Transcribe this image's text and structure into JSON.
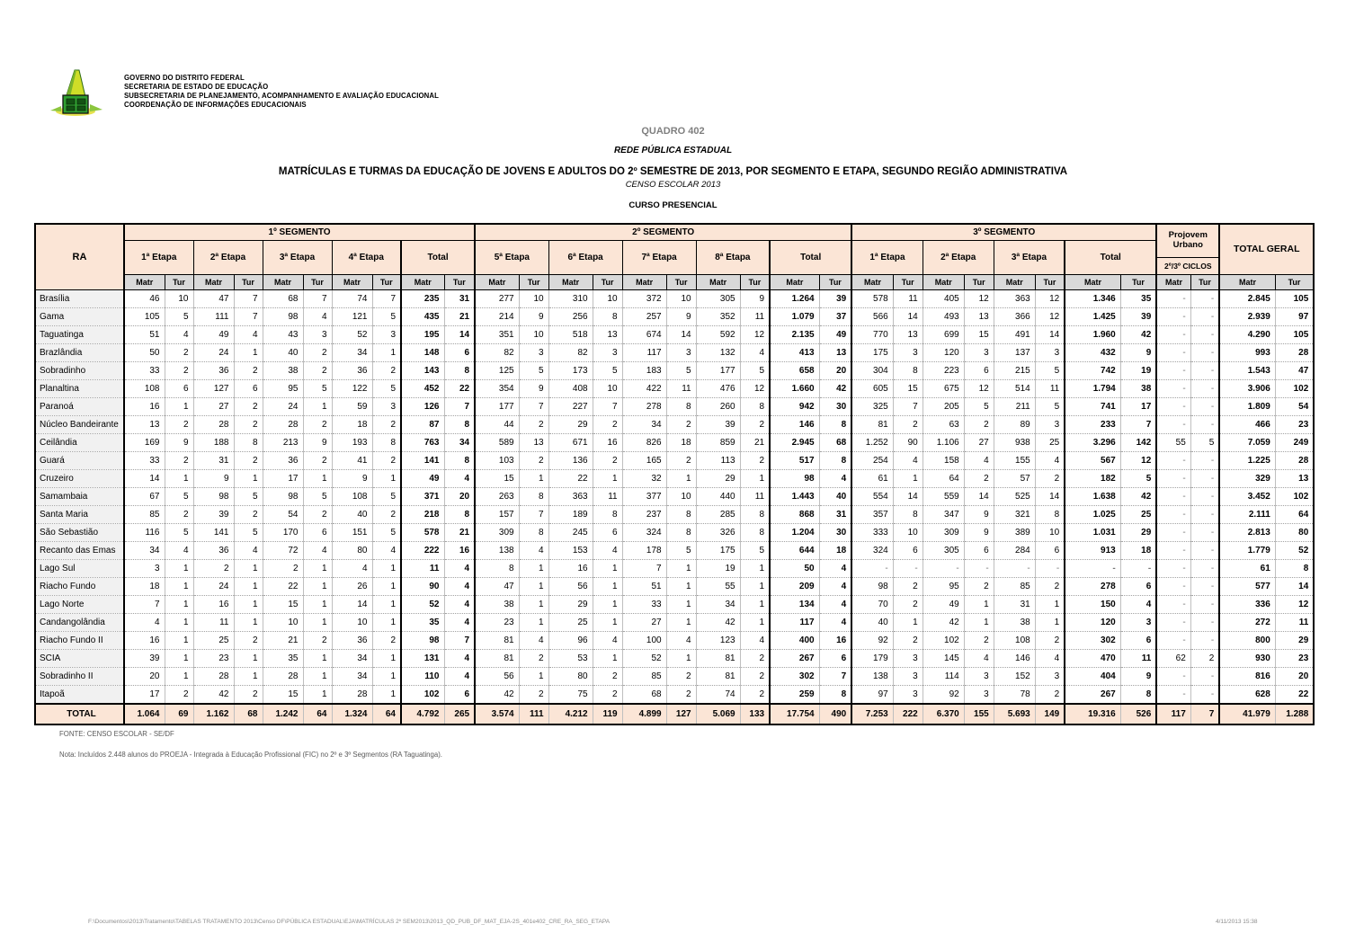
{
  "letterhead": {
    "org_lines": [
      "GOVERNO DO DISTRITO FEDERAL",
      "SECRETARIA DE ESTADO DE EDUCAÇÃO",
      "SUBSECRETARIA DE PLANEJAMENTO, ACOMPANHAMENTO E AVALIAÇÃO EDUCACIONAL",
      "COORDENAÇÃO DE INFORMAÇÕES EDUCACIONAIS"
    ]
  },
  "titles": {
    "quadro": "QUADRO 402",
    "rede": "REDE PÚBLICA ESTADUAL",
    "main": "MATRÍCULAS E TURMAS DA EDUCAÇÃO DE JOVENS E ADULTOS DO 2º SEMESTRE DE 2013, POR SEGMENTO E ETAPA, SEGUNDO REGIÃO ADMINISTRATIVA",
    "censo": "CENSO ESCOLAR 2013",
    "curso": "CURSO PRESENCIAL"
  },
  "table": {
    "ra_header": "RA",
    "matr_label": "Matr",
    "tur_label": "Tur",
    "segments": [
      {
        "label": "1º SEGMENTO",
        "etapas": [
          "1ª Etapa",
          "2ª Etapa",
          "3ª Etapa",
          "4ª Etapa",
          "Total"
        ]
      },
      {
        "label": "2º SEGMENTO",
        "etapas": [
          "5ª Etapa",
          "6ª Etapa",
          "7ª Etapa",
          "8ª Etapa",
          "Total"
        ]
      },
      {
        "label": "3º SEGMENTO",
        "etapas": [
          "1ª Etapa",
          "2ª Etapa",
          "3ª Etapa",
          "Total"
        ]
      }
    ],
    "projovem": {
      "label": "Projovem Urbano",
      "sub": "2º/3º CICLOS"
    },
    "total_geral_label": "TOTAL GERAL",
    "rows": [
      {
        "ra": "Brasília",
        "cells": [
          "46",
          "10",
          "47",
          "7",
          "68",
          "7",
          "74",
          "7",
          "235",
          "31",
          "277",
          "10",
          "310",
          "10",
          "372",
          "10",
          "305",
          "9",
          "1.264",
          "39",
          "578",
          "11",
          "405",
          "12",
          "363",
          "12",
          "1.346",
          "35",
          "-",
          "-",
          "2.845",
          "105"
        ]
      },
      {
        "ra": "Gama",
        "cells": [
          "105",
          "5",
          "111",
          "7",
          "98",
          "4",
          "121",
          "5",
          "435",
          "21",
          "214",
          "9",
          "256",
          "8",
          "257",
          "9",
          "352",
          "11",
          "1.079",
          "37",
          "566",
          "14",
          "493",
          "13",
          "366",
          "12",
          "1.425",
          "39",
          "-",
          "-",
          "2.939",
          "97"
        ]
      },
      {
        "ra": "Taguatinga",
        "cells": [
          "51",
          "4",
          "49",
          "4",
          "43",
          "3",
          "52",
          "3",
          "195",
          "14",
          "351",
          "10",
          "518",
          "13",
          "674",
          "14",
          "592",
          "12",
          "2.135",
          "49",
          "770",
          "13",
          "699",
          "15",
          "491",
          "14",
          "1.960",
          "42",
          "-",
          "-",
          "4.290",
          "105"
        ]
      },
      {
        "ra": "Brazlândia",
        "cells": [
          "50",
          "2",
          "24",
          "1",
          "40",
          "2",
          "34",
          "1",
          "148",
          "6",
          "82",
          "3",
          "82",
          "3",
          "117",
          "3",
          "132",
          "4",
          "413",
          "13",
          "175",
          "3",
          "120",
          "3",
          "137",
          "3",
          "432",
          "9",
          "-",
          "-",
          "993",
          "28"
        ]
      },
      {
        "ra": "Sobradinho",
        "cells": [
          "33",
          "2",
          "36",
          "2",
          "38",
          "2",
          "36",
          "2",
          "143",
          "8",
          "125",
          "5",
          "173",
          "5",
          "183",
          "5",
          "177",
          "5",
          "658",
          "20",
          "304",
          "8",
          "223",
          "6",
          "215",
          "5",
          "742",
          "19",
          "-",
          "-",
          "1.543",
          "47"
        ]
      },
      {
        "ra": "Planaltina",
        "cells": [
          "108",
          "6",
          "127",
          "6",
          "95",
          "5",
          "122",
          "5",
          "452",
          "22",
          "354",
          "9",
          "408",
          "10",
          "422",
          "11",
          "476",
          "12",
          "1.660",
          "42",
          "605",
          "15",
          "675",
          "12",
          "514",
          "11",
          "1.794",
          "38",
          "-",
          "-",
          "3.906",
          "102"
        ]
      },
      {
        "ra": "Paranoá",
        "cells": [
          "16",
          "1",
          "27",
          "2",
          "24",
          "1",
          "59",
          "3",
          "126",
          "7",
          "177",
          "7",
          "227",
          "7",
          "278",
          "8",
          "260",
          "8",
          "942",
          "30",
          "325",
          "7",
          "205",
          "5",
          "211",
          "5",
          "741",
          "17",
          "-",
          "-",
          "1.809",
          "54"
        ]
      },
      {
        "ra": "Núcleo Bandeirante",
        "cells": [
          "13",
          "2",
          "28",
          "2",
          "28",
          "2",
          "18",
          "2",
          "87",
          "8",
          "44",
          "2",
          "29",
          "2",
          "34",
          "2",
          "39",
          "2",
          "146",
          "8",
          "81",
          "2",
          "63",
          "2",
          "89",
          "3",
          "233",
          "7",
          "-",
          "-",
          "466",
          "23"
        ]
      },
      {
        "ra": "Ceilândia",
        "cells": [
          "169",
          "9",
          "188",
          "8",
          "213",
          "9",
          "193",
          "8",
          "763",
          "34",
          "589",
          "13",
          "671",
          "16",
          "826",
          "18",
          "859",
          "21",
          "2.945",
          "68",
          "1.252",
          "90",
          "1.106",
          "27",
          "938",
          "25",
          "3.296",
          "142",
          "55",
          "5",
          "7.059",
          "249"
        ]
      },
      {
        "ra": "Guará",
        "cells": [
          "33",
          "2",
          "31",
          "2",
          "36",
          "2",
          "41",
          "2",
          "141",
          "8",
          "103",
          "2",
          "136",
          "2",
          "165",
          "2",
          "113",
          "2",
          "517",
          "8",
          "254",
          "4",
          "158",
          "4",
          "155",
          "4",
          "567",
          "12",
          "-",
          "-",
          "1.225",
          "28"
        ]
      },
      {
        "ra": "Cruzeiro",
        "cells": [
          "14",
          "1",
          "9",
          "1",
          "17",
          "1",
          "9",
          "1",
          "49",
          "4",
          "15",
          "1",
          "22",
          "1",
          "32",
          "1",
          "29",
          "1",
          "98",
          "4",
          "61",
          "1",
          "64",
          "2",
          "57",
          "2",
          "182",
          "5",
          "-",
          "-",
          "329",
          "13"
        ]
      },
      {
        "ra": "Samambaia",
        "cells": [
          "67",
          "5",
          "98",
          "5",
          "98",
          "5",
          "108",
          "5",
          "371",
          "20",
          "263",
          "8",
          "363",
          "11",
          "377",
          "10",
          "440",
          "11",
          "1.443",
          "40",
          "554",
          "14",
          "559",
          "14",
          "525",
          "14",
          "1.638",
          "42",
          "-",
          "-",
          "3.452",
          "102"
        ]
      },
      {
        "ra": "Santa Maria",
        "cells": [
          "85",
          "2",
          "39",
          "2",
          "54",
          "2",
          "40",
          "2",
          "218",
          "8",
          "157",
          "7",
          "189",
          "8",
          "237",
          "8",
          "285",
          "8",
          "868",
          "31",
          "357",
          "8",
          "347",
          "9",
          "321",
          "8",
          "1.025",
          "25",
          "-",
          "-",
          "2.111",
          "64"
        ]
      },
      {
        "ra": "São Sebastião",
        "cells": [
          "116",
          "5",
          "141",
          "5",
          "170",
          "6",
          "151",
          "5",
          "578",
          "21",
          "309",
          "8",
          "245",
          "6",
          "324",
          "8",
          "326",
          "8",
          "1.204",
          "30",
          "333",
          "10",
          "309",
          "9",
          "389",
          "10",
          "1.031",
          "29",
          "-",
          "-",
          "2.813",
          "80"
        ]
      },
      {
        "ra": "Recanto das Emas",
        "cells": [
          "34",
          "4",
          "36",
          "4",
          "72",
          "4",
          "80",
          "4",
          "222",
          "16",
          "138",
          "4",
          "153",
          "4",
          "178",
          "5",
          "175",
          "5",
          "644",
          "18",
          "324",
          "6",
          "305",
          "6",
          "284",
          "6",
          "913",
          "18",
          "-",
          "-",
          "1.779",
          "52"
        ]
      },
      {
        "ra": "Lago Sul",
        "cells": [
          "3",
          "1",
          "2",
          "1",
          "2",
          "1",
          "4",
          "1",
          "11",
          "4",
          "8",
          "1",
          "16",
          "1",
          "7",
          "1",
          "19",
          "1",
          "50",
          "4",
          "-",
          "-",
          "-",
          "-",
          "-",
          "-",
          "-",
          "-",
          "-",
          "-",
          "61",
          "8"
        ]
      },
      {
        "ra": "Riacho Fundo",
        "cells": [
          "18",
          "1",
          "24",
          "1",
          "22",
          "1",
          "26",
          "1",
          "90",
          "4",
          "47",
          "1",
          "56",
          "1",
          "51",
          "1",
          "55",
          "1",
          "209",
          "4",
          "98",
          "2",
          "95",
          "2",
          "85",
          "2",
          "278",
          "6",
          "-",
          "-",
          "577",
          "14"
        ]
      },
      {
        "ra": "Lago Norte",
        "cells": [
          "7",
          "1",
          "16",
          "1",
          "15",
          "1",
          "14",
          "1",
          "52",
          "4",
          "38",
          "1",
          "29",
          "1",
          "33",
          "1",
          "34",
          "1",
          "134",
          "4",
          "70",
          "2",
          "49",
          "1",
          "31",
          "1",
          "150",
          "4",
          "-",
          "-",
          "336",
          "12"
        ]
      },
      {
        "ra": "Candangolândia",
        "cells": [
          "4",
          "1",
          "11",
          "1",
          "10",
          "1",
          "10",
          "1",
          "35",
          "4",
          "23",
          "1",
          "25",
          "1",
          "27",
          "1",
          "42",
          "1",
          "117",
          "4",
          "40",
          "1",
          "42",
          "1",
          "38",
          "1",
          "120",
          "3",
          "-",
          "-",
          "272",
          "11"
        ]
      },
      {
        "ra": "Riacho Fundo II",
        "cells": [
          "16",
          "1",
          "25",
          "2",
          "21",
          "2",
          "36",
          "2",
          "98",
          "7",
          "81",
          "4",
          "96",
          "4",
          "100",
          "4",
          "123",
          "4",
          "400",
          "16",
          "92",
          "2",
          "102",
          "2",
          "108",
          "2",
          "302",
          "6",
          "-",
          "-",
          "800",
          "29"
        ]
      },
      {
        "ra": "SCIA",
        "cells": [
          "39",
          "1",
          "23",
          "1",
          "35",
          "1",
          "34",
          "1",
          "131",
          "4",
          "81",
          "2",
          "53",
          "1",
          "52",
          "1",
          "81",
          "2",
          "267",
          "6",
          "179",
          "3",
          "145",
          "4",
          "146",
          "4",
          "470",
          "11",
          "62",
          "2",
          "930",
          "23"
        ]
      },
      {
        "ra": "Sobradinho II",
        "cells": [
          "20",
          "1",
          "28",
          "1",
          "28",
          "1",
          "34",
          "1",
          "110",
          "4",
          "56",
          "1",
          "80",
          "2",
          "85",
          "2",
          "81",
          "2",
          "302",
          "7",
          "138",
          "3",
          "114",
          "3",
          "152",
          "3",
          "404",
          "9",
          "-",
          "-",
          "816",
          "20"
        ]
      },
      {
        "ra": "Itapoã",
        "cells": [
          "17",
          "2",
          "42",
          "2",
          "15",
          "1",
          "28",
          "1",
          "102",
          "6",
          "42",
          "2",
          "75",
          "2",
          "68",
          "2",
          "74",
          "2",
          "259",
          "8",
          "97",
          "3",
          "92",
          "3",
          "78",
          "2",
          "267",
          "8",
          "-",
          "-",
          "628",
          "22"
        ]
      }
    ],
    "total_row": {
      "ra": "TOTAL",
      "cells": [
        "1.064",
        "69",
        "1.162",
        "68",
        "1.242",
        "64",
        "1.324",
        "64",
        "4.792",
        "265",
        "3.574",
        "111",
        "4.212",
        "119",
        "4.899",
        "127",
        "5.069",
        "133",
        "17.754",
        "490",
        "7.253",
        "222",
        "6.370",
        "155",
        "5.693",
        "149",
        "19.316",
        "526",
        "117",
        "7",
        "41.979",
        "1.288"
      ]
    }
  },
  "footer": {
    "fonte": "FONTE: CENSO ESCOLAR - SE/DF",
    "nota": "Nota: Incluídos  2.448 alunos do PROEJA - Integrada à Educação Profissional (FIC) no 2º e 3º Segmentos (RA Taguatinga)."
  },
  "statusbar": {
    "path": "F:\\Documentos\\2013\\Tratamento\\TABELAS TRATAMENTO 2013\\Censo DF\\PÚBLICA ESTADUAL\\EJA\\MATRÍCULAS 2º SEM2013\\2013_QD_PUB_DF_MAT_EJA-2S_401e402_CRE_RA_SEG_ETAPA",
    "datetime": "4/11/2013 15:38"
  }
}
